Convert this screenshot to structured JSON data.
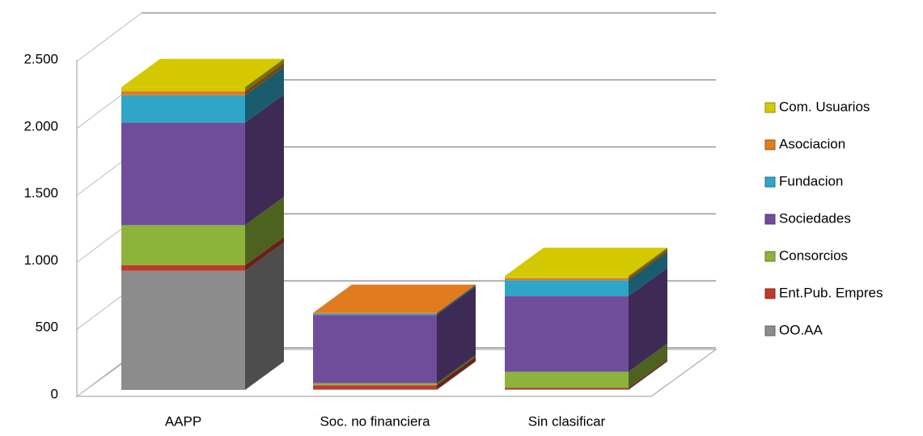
{
  "chart_data": {
    "type": "bar3d_stacked",
    "categories": [
      "AAPP",
      "Soc. no financiera",
      "Sin clasificar"
    ],
    "series": [
      {
        "name": "OO.AA",
        "color": "#8c8c8c",
        "values": [
          890,
          5,
          5
        ]
      },
      {
        "name": "Ent.Pub. Empres",
        "color": "#c0392b",
        "values": [
          40,
          30,
          10
        ]
      },
      {
        "name": "Consorcios",
        "color": "#8db33a",
        "values": [
          300,
          15,
          120
        ]
      },
      {
        "name": "Sociedades",
        "color": "#6f4d9b",
        "values": [
          765,
          510,
          565
        ]
      },
      {
        "name": "Fundacion",
        "color": "#2fa5c8",
        "values": [
          205,
          10,
          120
        ]
      },
      {
        "name": "Asociacion",
        "color": "#e07b20",
        "values": [
          30,
          5,
          15
        ]
      },
      {
        "name": "Com. Usuarios",
        "color": "#d4c800",
        "values": [
          30,
          0,
          15
        ]
      }
    ],
    "ylim": [
      0,
      2500
    ],
    "yticks": [
      0,
      {
        "value": 500,
        "label": "500"
      },
      {
        "value": 1000,
        "label": "1.000"
      },
      {
        "value": 1500,
        "label": "1.500"
      },
      {
        "value": 2000,
        "label": "2.000"
      },
      {
        "value": 2500,
        "label": "2.500"
      }
    ],
    "grid": true,
    "legend": "right"
  }
}
